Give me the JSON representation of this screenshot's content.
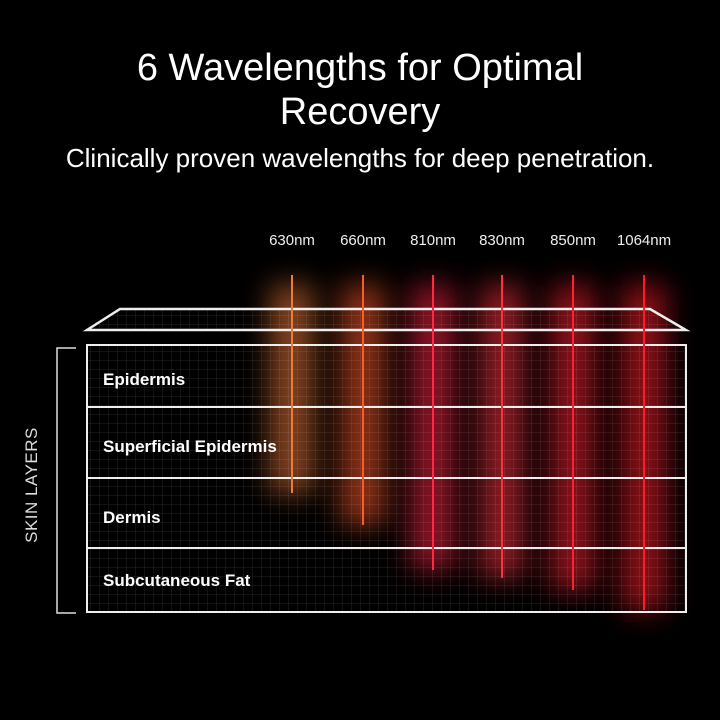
{
  "title_line1": "6 Wavelengths for Optimal",
  "title_line2": "Recovery",
  "subtitle": "Clinically proven wavelengths for deep penetration.",
  "side_label": "SKIN LAYERS",
  "layers": [
    "Epidermis",
    "Superficial Epidermis",
    "Dermis",
    "Subcutaneous Fat"
  ],
  "wavelengths": [
    {
      "label": "630nm",
      "color": "#f07a3a",
      "depth_layer": "Superficial Epidermis"
    },
    {
      "label": "660nm",
      "color": "#ff5a2a",
      "depth_layer": "Dermis"
    },
    {
      "label": "810nm",
      "color": "#ff2845",
      "depth_layer": "Subcutaneous Fat"
    },
    {
      "label": "830nm",
      "color": "#ff3040",
      "depth_layer": "Subcutaneous Fat"
    },
    {
      "label": "850nm",
      "color": "#ff2030",
      "depth_layer": "Subcutaneous Fat"
    },
    {
      "label": "1064nm",
      "color": "#ff1a2a",
      "depth_layer": "Subcutaneous Fat"
    }
  ]
}
